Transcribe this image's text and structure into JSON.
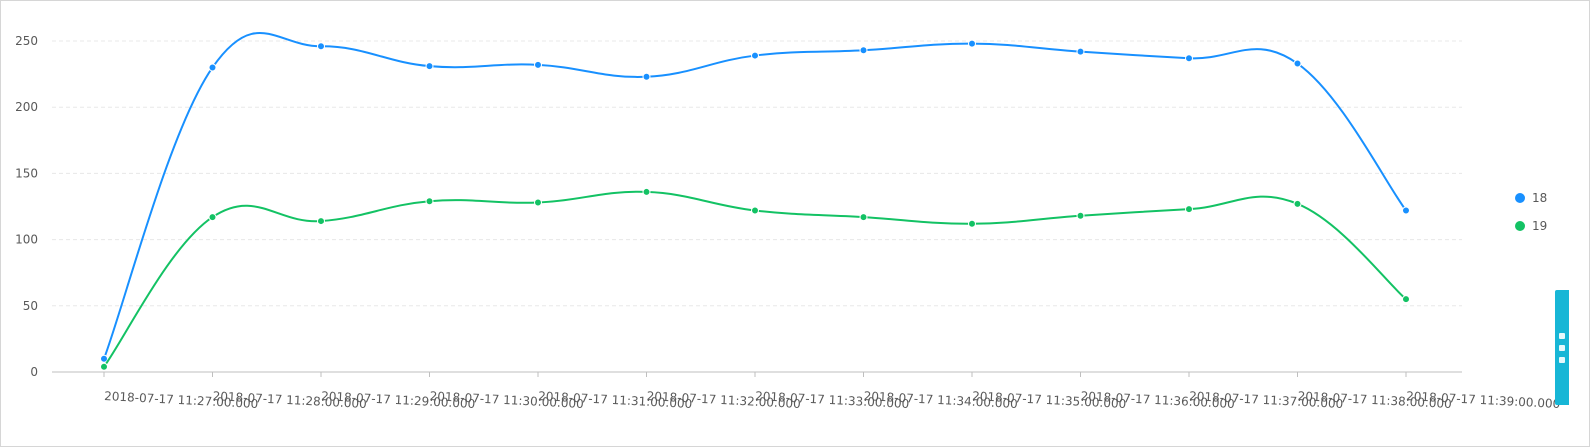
{
  "chart_data": {
    "type": "line",
    "title": "",
    "xlabel": "",
    "ylabel": "",
    "ylim": [
      0,
      250
    ],
    "yticks": [
      0,
      50,
      100,
      150,
      200,
      250
    ],
    "grid": true,
    "smooth": true,
    "legend_position": "right",
    "categories": [
      "2018-07-17 11:27:00.000",
      "2018-07-17 11:28:00.000",
      "2018-07-17 11:29:00.000",
      "2018-07-17 11:30:00.000",
      "2018-07-17 11:31:00.000",
      "2018-07-17 11:32:00.000",
      "2018-07-17 11:33:00.000",
      "2018-07-17 11:34:00.000",
      "2018-07-17 11:35:00.000",
      "2018-07-17 11:36:00.000",
      "2018-07-17 11:37:00.000",
      "2018-07-17 11:38:00.000",
      "2018-07-17 11:39:00.000"
    ],
    "series": [
      {
        "name": "18",
        "color": "#1890ff",
        "values": [
          10,
          230,
          246,
          231,
          232,
          223,
          239,
          243,
          248,
          242,
          237,
          233,
          122
        ]
      },
      {
        "name": "19",
        "color": "#13c264",
        "values": [
          4,
          117,
          114,
          129,
          128,
          136,
          122,
          117,
          112,
          118,
          123,
          127,
          55
        ]
      }
    ]
  },
  "feedback_tab": {
    "icon": "feedback-icon"
  }
}
